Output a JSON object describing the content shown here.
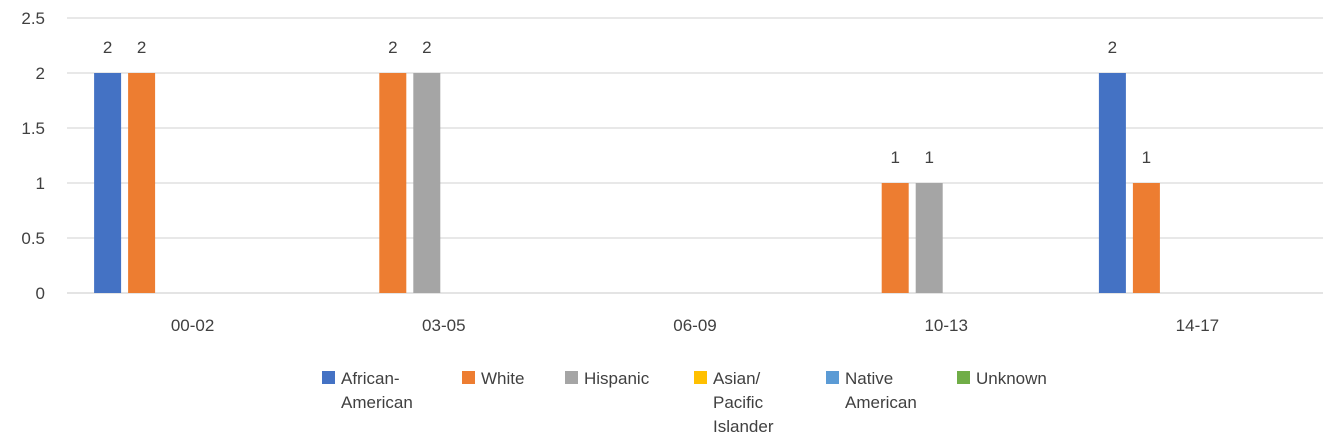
{
  "chart_data": {
    "type": "bar",
    "categories": [
      "00-02",
      "03-05",
      "06-09",
      "10-13",
      "14-17"
    ],
    "series": [
      {
        "name": "African-American",
        "color": "#4472C4",
        "values": [
          2,
          0,
          0,
          0,
          2
        ]
      },
      {
        "name": "White",
        "color": "#ED7D31",
        "values": [
          2,
          2,
          0,
          1,
          1
        ]
      },
      {
        "name": "Hispanic",
        "color": "#A5A5A5",
        "values": [
          0,
          2,
          0,
          1,
          0
        ]
      },
      {
        "name": "Asian/ Pacific Islander",
        "color": "#FFC000",
        "values": [
          0,
          0,
          0,
          0,
          0
        ]
      },
      {
        "name": "Native American",
        "color": "#5B9BD5",
        "values": [
          0,
          0,
          0,
          0,
          0
        ]
      },
      {
        "name": "Unknown",
        "color": "#70AD47",
        "values": [
          0,
          0,
          0,
          0,
          0
        ]
      }
    ],
    "legend_lines": [
      [
        "African-",
        "American"
      ],
      [
        "White"
      ],
      [
        "Hispanic"
      ],
      [
        "Asian/",
        "Pacific",
        "Islander"
      ],
      [
        "Native",
        "American"
      ],
      [
        "Unknown"
      ]
    ],
    "y_ticks": [
      "0",
      "0.5",
      "1",
      "1.5",
      "2",
      "2.5"
    ],
    "ylim": [
      0,
      2.5
    ],
    "grid": true,
    "legend_position": "bottom",
    "title": "",
    "xlabel": "",
    "ylabel": ""
  }
}
